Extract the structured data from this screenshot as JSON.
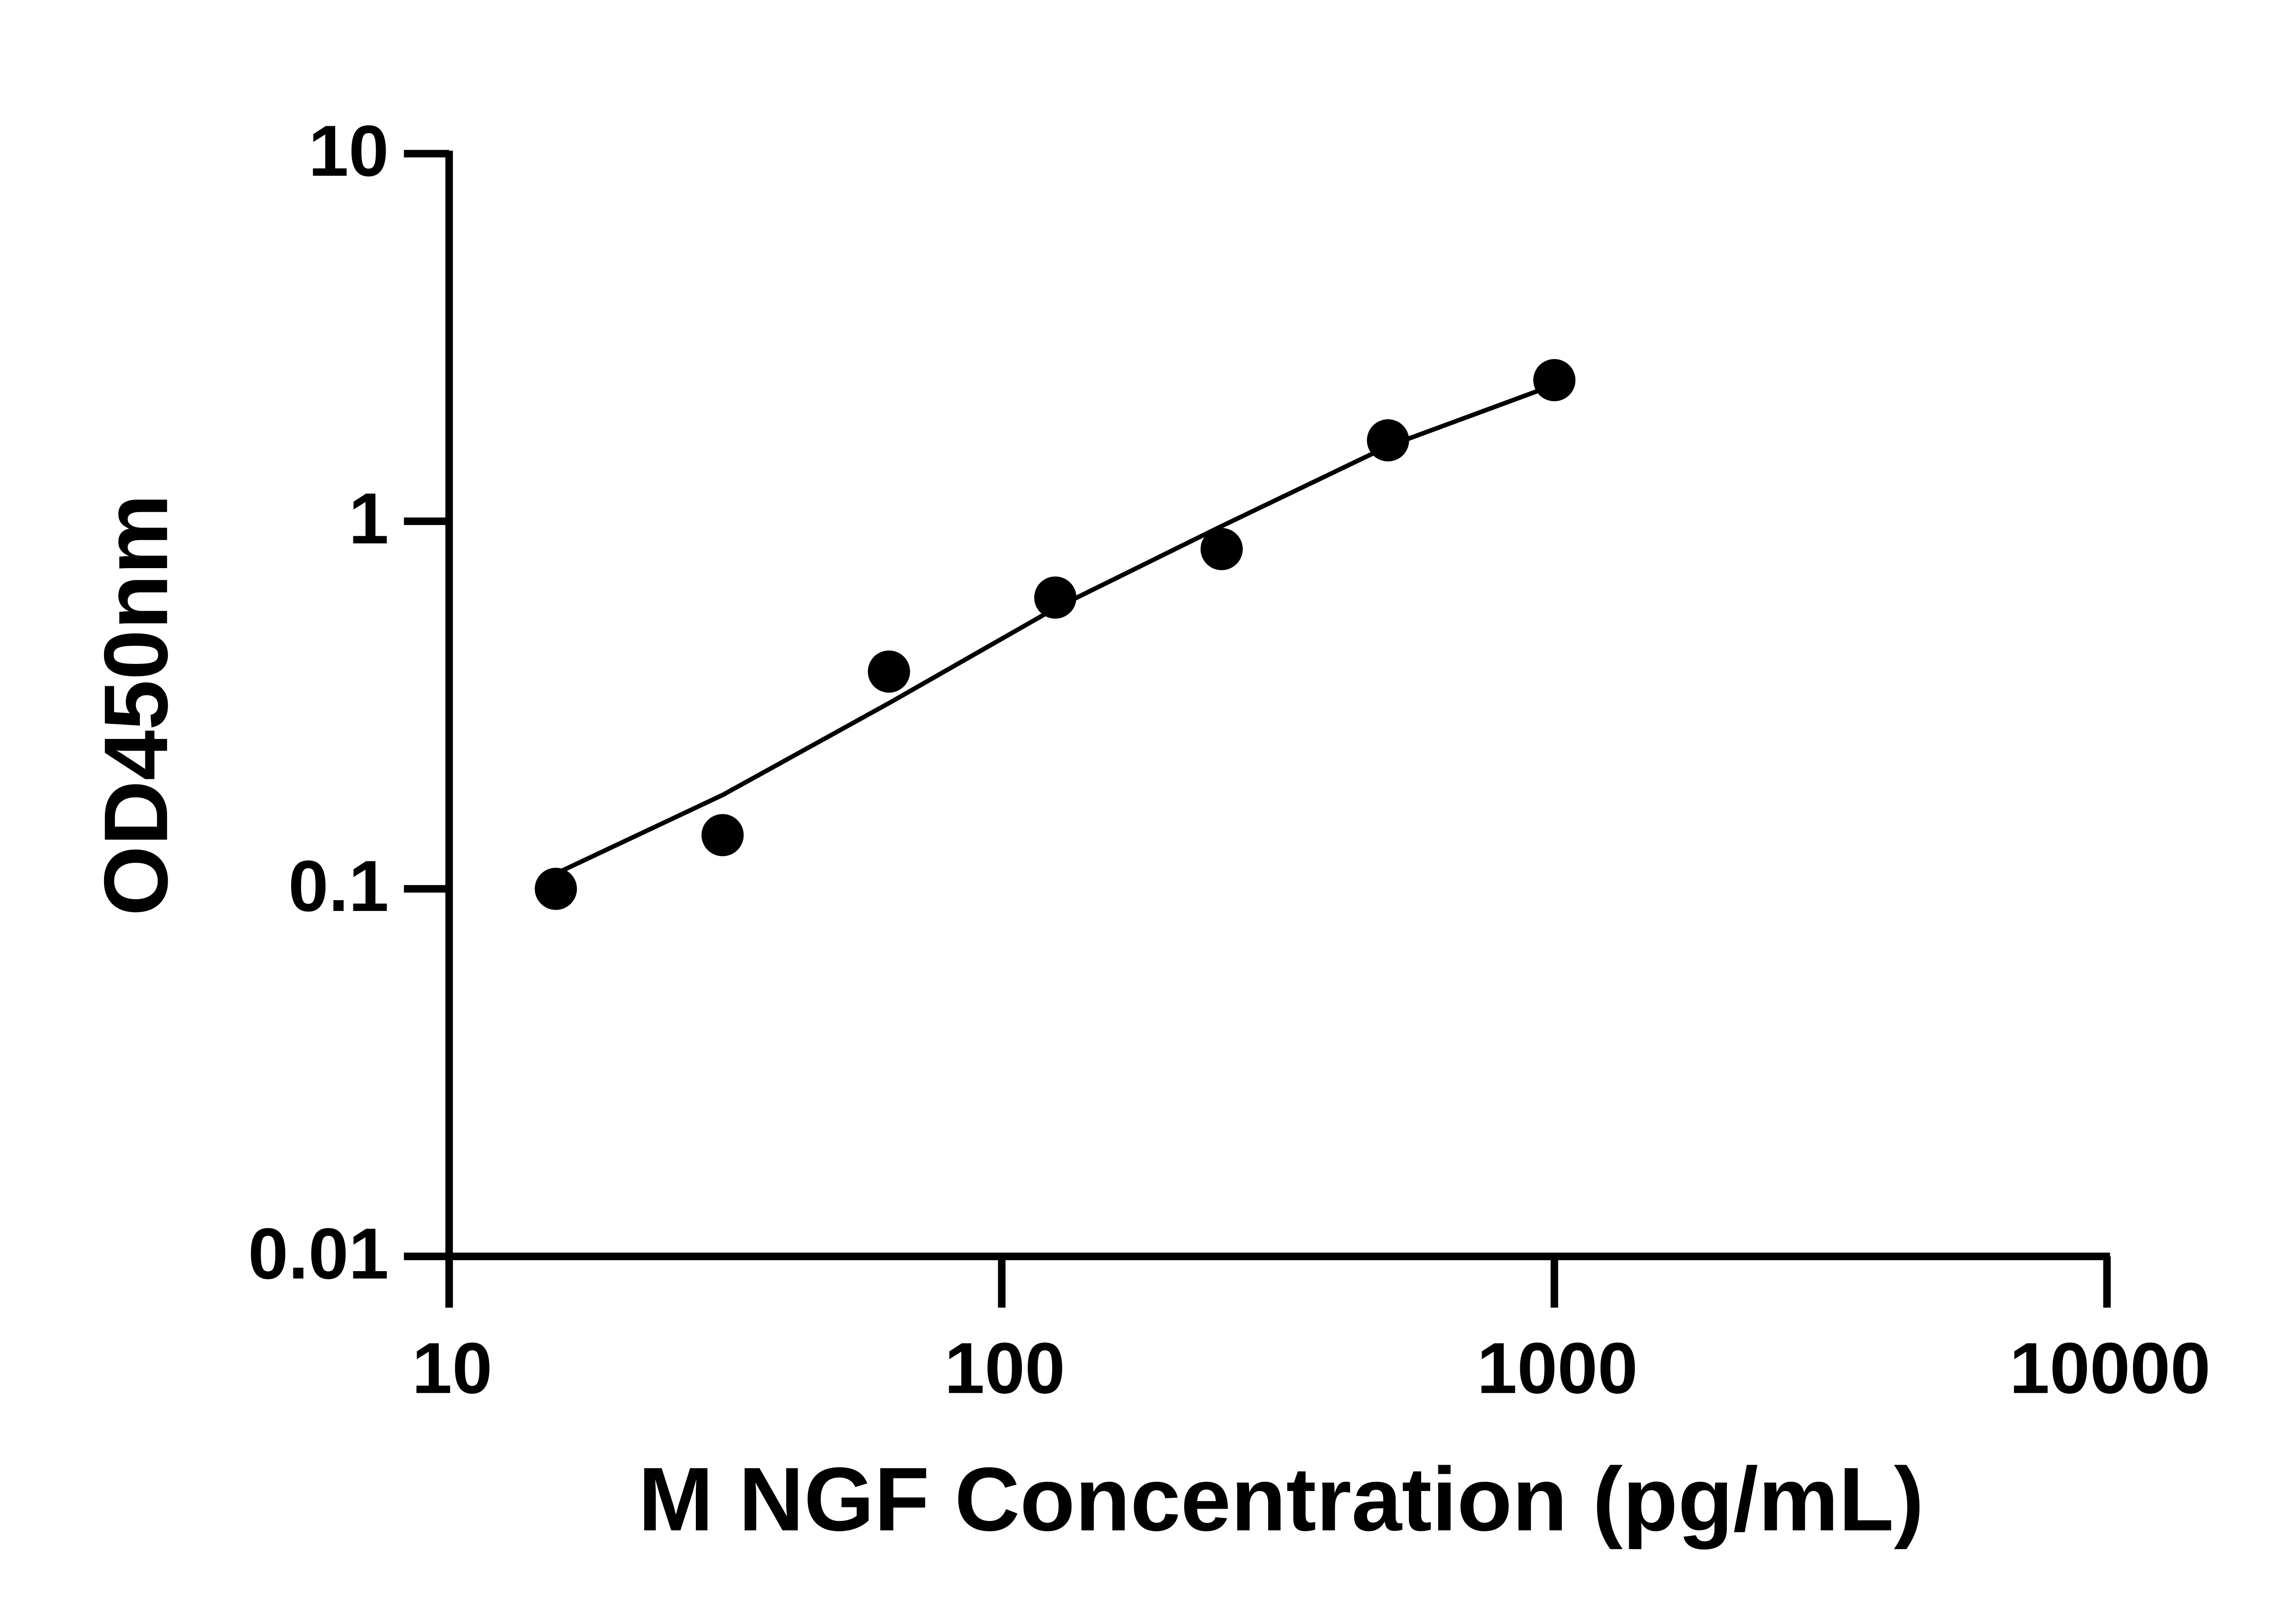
{
  "chart_data": {
    "type": "scatter",
    "x_label": "M NGF Concentration (pg/mL)",
    "y_label": "OD450nm",
    "x": [
      15.6,
      31.25,
      62.5,
      125,
      250,
      500,
      1000
    ],
    "series": [
      {
        "color": "#000000",
        "marker": "circle",
        "values": [
          0.1,
          0.14,
          0.39,
          0.62,
          0.84,
          1.66,
          2.42
        ]
      },
      {
        "color": "#000000",
        "marker": "line",
        "values": [
          0.11,
          0.18,
          0.32,
          0.58,
          0.97,
          1.6,
          2.35
        ]
      }
    ],
    "xlog": true,
    "ylog": true,
    "xlim": [
      10,
      10000
    ],
    "xticks": [
      10,
      100,
      1000,
      10000
    ],
    "ylim": [
      0.01,
      10
    ],
    "yticks": [
      0.01,
      0.1,
      1,
      10
    ],
    "grid": false
  }
}
